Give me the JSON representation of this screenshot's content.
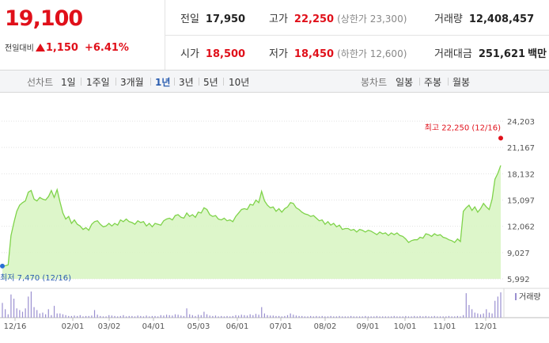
{
  "summary": {
    "price": "19,100",
    "change_label": "전일대비",
    "change_value": "1,150",
    "change_pct": "+6.41%",
    "prev_close_label": "전일",
    "prev_close": "17,950",
    "open_label": "시가",
    "open": "18,500",
    "high_label": "고가",
    "high": "22,250",
    "upper_limit": "(상한가 23,300)",
    "low_label": "저가",
    "low": "18,450",
    "lower_limit": "(하한가 12,600)",
    "volume_label": "거래량",
    "volume": "12,408,457",
    "amount_label": "거래대금",
    "amount": "251,621",
    "amount_unit": "백만"
  },
  "period_bar": {
    "line_label": "선차트",
    "line_options": [
      "1일",
      "1주일",
      "3개월",
      "1년",
      "3년",
      "5년",
      "10년"
    ],
    "active": "1년",
    "candle_label": "봉차트",
    "candle_options": [
      "일봉",
      "주봉",
      "월봉"
    ]
  },
  "colors": {
    "up": "#e0101a",
    "line": "#7fd34a",
    "fill": "#d9f5c4",
    "low_marker": "#2a6fd6",
    "volume": "#9a8fd0"
  },
  "chart_data": {
    "type": "area",
    "ylim": [
      5992,
      24203
    ],
    "yticks": [
      "24,203",
      "21,167",
      "18,132",
      "15,097",
      "12,062",
      "9,027",
      "5,992"
    ],
    "xticks": [
      "12/16",
      "02/01",
      "03/02",
      "04/01",
      "05/03",
      "06/01",
      "07/01",
      "08/02",
      "09/01",
      "10/01",
      "11/01",
      "12/01"
    ],
    "high_annotation": "최고 22,250 (12/16)",
    "low_annotation": "최저 7,470 (12/16)",
    "volume_legend": "거래량",
    "series": [
      {
        "values": [
          7470,
          7500,
          7600,
          11000,
          12500,
          13800,
          14500,
          14800,
          15000,
          16000,
          16200,
          15200,
          15000,
          15400,
          15200,
          15100,
          15500,
          16200,
          15400,
          16300,
          14900,
          13600,
          12900,
          13200,
          12400,
          12800,
          12300,
          12100,
          11700,
          11900,
          11600,
          12300,
          12600,
          12700,
          12300,
          12000,
          12100,
          12400,
          12100,
          12400,
          12200,
          12800,
          12600,
          12900,
          12600,
          12500,
          12300,
          12700,
          12500,
          12600,
          12100,
          12400,
          12000,
          12400,
          12300,
          12200,
          12700,
          12900,
          13000,
          12800,
          13300,
          13400,
          13100,
          13000,
          13600,
          13200,
          13400,
          13100,
          13700,
          13600,
          14200,
          14000,
          13400,
          13200,
          13300,
          12900,
          12800,
          13000,
          12700,
          12800,
          12600,
          13200,
          13600,
          14000,
          14100,
          14000,
          14600,
          14500,
          15100,
          14800,
          16100,
          15000,
          14500,
          14200,
          14300,
          13800,
          14100,
          13700,
          14100,
          14300,
          14800,
          14700,
          14200,
          14000,
          13700,
          13500,
          13400,
          13200,
          13300,
          13000,
          12700,
          12800,
          12300,
          12600,
          12200,
          12400,
          12000,
          12200,
          11700,
          11800,
          11800,
          11600,
          11700,
          11400,
          11700,
          11600,
          11400,
          11600,
          11500,
          11300,
          11100,
          11400,
          11200,
          11300,
          11000,
          11300,
          11100,
          11300,
          11000,
          10900,
          10600,
          10200,
          10400,
          10500,
          10500,
          10800,
          10700,
          11200,
          11100,
          10900,
          11200,
          11000,
          11100,
          10800,
          10700,
          10500,
          10400,
          10200,
          10600,
          10300,
          13800,
          14200,
          14500,
          13900,
          14300,
          13700,
          14100,
          14700,
          14300,
          14000,
          15200,
          17500,
          18200,
          19100
        ]
      }
    ],
    "volume": [
      35,
      20,
      8,
      55,
      45,
      22,
      18,
      14,
      22,
      50,
      62,
      25,
      18,
      10,
      12,
      8,
      20,
      6,
      28,
      10,
      10,
      8,
      6,
      4,
      4,
      5,
      4,
      6,
      3,
      4,
      4,
      5,
      18,
      7,
      4,
      3,
      3,
      6,
      5,
      4,
      3,
      4,
      6,
      3,
      4,
      4,
      3,
      5,
      4,
      3,
      5,
      3,
      4,
      4,
      3,
      6,
      5,
      7,
      6,
      5,
      8,
      7,
      5,
      4,
      22,
      8,
      6,
      4,
      7,
      6,
      14,
      8,
      5,
      4,
      5,
      3,
      4,
      3,
      4,
      3,
      4,
      6,
      5,
      7,
      6,
      5,
      8,
      6,
      9,
      7,
      25,
      10,
      6,
      5,
      5,
      4,
      4,
      3,
      4,
      6,
      10,
      7,
      5,
      4,
      4,
      3,
      3,
      4,
      3,
      4,
      3,
      4,
      3,
      3,
      4,
      3,
      3,
      4,
      3,
      3,
      3,
      4,
      3,
      3,
      3,
      3,
      4,
      3,
      3,
      3,
      4,
      3,
      3,
      3,
      3,
      3,
      4,
      3,
      3,
      3,
      4,
      3,
      3,
      4,
      3,
      4,
      3,
      4,
      3,
      3,
      4,
      3,
      3,
      3,
      3,
      4,
      3,
      3,
      4,
      3,
      6,
      58,
      30,
      20,
      12,
      10,
      8,
      10,
      20,
      12,
      10,
      40,
      50,
      60
    ]
  }
}
